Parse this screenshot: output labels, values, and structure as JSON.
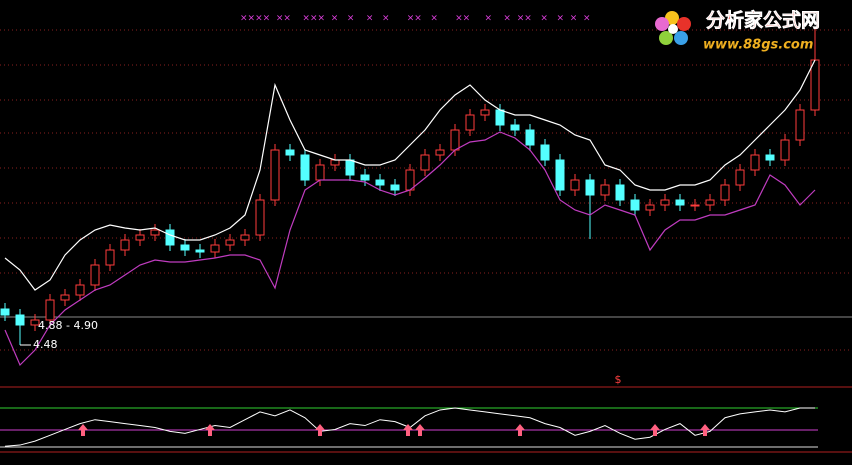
{
  "logo": {
    "name": "分析家公式网",
    "url": "www.88gs.com"
  },
  "chart_data": [
    {
      "type": "candlestick",
      "ylim": [
        3.68,
        11.38
      ],
      "up_color": "#ff3c3c",
      "down_color": "#54ffff",
      "open": [
        5.2,
        5.08,
        4.88,
        4.98,
        5.38,
        5.48,
        5.68,
        6.08,
        6.38,
        6.58,
        6.68,
        6.78,
        6.48,
        6.38,
        6.34,
        6.48,
        6.58,
        6.68,
        7.38,
        8.38,
        8.28,
        7.78,
        8.08,
        8.18,
        7.88,
        7.78,
        7.68,
        7.58,
        7.98,
        8.28,
        8.38,
        8.78,
        9.08,
        9.18,
        8.88,
        8.78,
        8.48,
        8.18,
        7.58,
        7.78,
        7.48,
        7.68,
        7.38,
        7.18,
        7.28,
        7.38,
        7.28,
        7.28,
        7.38,
        7.68,
        7.98,
        8.28,
        8.18,
        8.58,
        9.18
      ],
      "high": [
        5.32,
        5.2,
        5.1,
        5.5,
        5.6,
        5.8,
        6.2,
        6.5,
        6.7,
        6.8,
        6.9,
        6.9,
        6.6,
        6.5,
        6.6,
        6.7,
        6.8,
        7.5,
        8.5,
        8.5,
        8.4,
        8.2,
        8.3,
        8.3,
        8.0,
        7.9,
        7.8,
        8.1,
        8.4,
        8.5,
        8.9,
        9.2,
        9.3,
        9.3,
        9.0,
        8.9,
        8.6,
        8.3,
        7.9,
        7.9,
        7.8,
        7.8,
        7.5,
        7.4,
        7.5,
        7.5,
        7.4,
        7.5,
        7.8,
        8.1,
        8.4,
        8.4,
        8.7,
        9.3,
        10.8
      ],
      "low": [
        4.96,
        4.48,
        4.76,
        4.86,
        5.26,
        5.36,
        5.56,
        5.96,
        6.26,
        6.46,
        6.56,
        6.36,
        6.26,
        6.22,
        6.22,
        6.36,
        6.46,
        6.56,
        7.26,
        8.16,
        7.66,
        7.66,
        7.96,
        7.76,
        7.66,
        7.56,
        7.46,
        7.46,
        7.86,
        8.16,
        8.26,
        8.66,
        8.96,
        8.76,
        8.66,
        8.36,
        8.06,
        7.46,
        7.46,
        6.6,
        7.36,
        7.26,
        7.06,
        7.06,
        7.16,
        7.16,
        7.16,
        7.16,
        7.26,
        7.56,
        7.86,
        8.06,
        8.06,
        8.46,
        9.06
      ],
      "close": [
        5.08,
        4.88,
        4.98,
        5.38,
        5.48,
        5.68,
        6.08,
        6.38,
        6.58,
        6.68,
        6.78,
        6.48,
        6.38,
        6.34,
        6.48,
        6.58,
        6.68,
        7.38,
        8.38,
        8.28,
        7.78,
        8.08,
        8.18,
        7.88,
        7.78,
        7.68,
        7.58,
        7.98,
        8.28,
        8.38,
        8.78,
        9.08,
        9.18,
        8.88,
        8.78,
        8.48,
        8.18,
        7.58,
        7.78,
        7.48,
        7.68,
        7.38,
        7.18,
        7.28,
        7.38,
        7.28,
        7.28,
        7.38,
        7.68,
        7.98,
        8.28,
        8.18,
        8.58,
        9.18,
        10.18
      ],
      "lines": [
        {
          "color": "#ffffff",
          "values": [
            6.22,
            5.98,
            5.58,
            5.78,
            6.28,
            6.58,
            6.78,
            6.88,
            6.82,
            6.78,
            6.82,
            6.68,
            6.58,
            6.58,
            6.68,
            6.82,
            7.08,
            7.98,
            9.68,
            8.98,
            8.38,
            8.28,
            8.18,
            8.18,
            8.08,
            8.08,
            8.18,
            8.48,
            8.78,
            9.18,
            9.48,
            9.68,
            9.38,
            9.18,
            9.08,
            9.08,
            8.98,
            8.88,
            8.68,
            8.58,
            8.08,
            7.98,
            7.68,
            7.58,
            7.58,
            7.68,
            7.68,
            7.78,
            8.08,
            8.28,
            8.58,
            8.88,
            9.18,
            9.58,
            10.18
          ]
        },
        {
          "color": "#c03cc0",
          "values": [
            4.78,
            4.08,
            4.38,
            4.88,
            5.18,
            5.38,
            5.58,
            5.68,
            5.88,
            6.08,
            6.18,
            6.14,
            6.14,
            6.18,
            6.22,
            6.28,
            6.28,
            6.18,
            5.62,
            6.78,
            7.58,
            7.78,
            7.78,
            7.78,
            7.74,
            7.58,
            7.48,
            7.58,
            7.82,
            8.08,
            8.38,
            8.54,
            8.58,
            8.74,
            8.62,
            8.38,
            7.98,
            7.38,
            7.18,
            7.08,
            7.28,
            7.18,
            7.08,
            6.38,
            6.78,
            6.98,
            6.98,
            7.08,
            7.08,
            7.18,
            7.28,
            7.88,
            7.68,
            7.28,
            7.58
          ]
        }
      ],
      "annotations": [
        "4.88 - 4.90",
        "4.48"
      ],
      "top_marks": "××××  ××    ×××  ×   ×    ×   ×      ××   ×      ××     ×    ×  ××   ×   ×  ×  ×"
    },
    {
      "type": "line",
      "ylim": [
        0,
        100
      ],
      "color": "#ffffff",
      "signal_text": "$",
      "values": [
        2,
        5,
        15,
        30,
        45,
        60,
        70,
        65,
        60,
        55,
        50,
        40,
        35,
        45,
        55,
        50,
        70,
        90,
        80,
        95,
        75,
        40,
        45,
        60,
        55,
        70,
        65,
        50,
        80,
        95,
        100,
        95,
        90,
        85,
        80,
        75,
        60,
        50,
        30,
        40,
        55,
        35,
        20,
        25,
        45,
        60,
        30,
        40,
        75,
        85,
        90,
        95,
        90,
        100,
        100
      ]
    }
  ]
}
